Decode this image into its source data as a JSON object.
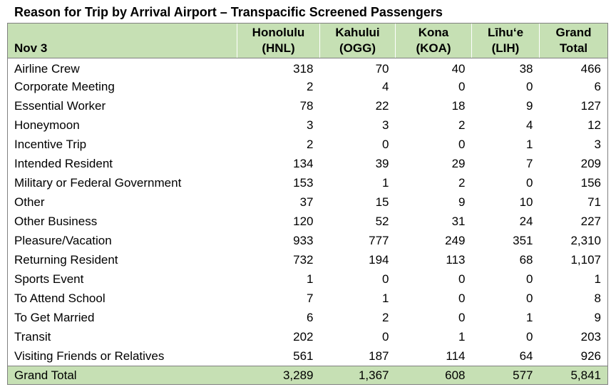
{
  "title": "Reason for Trip by Arrival Airport – Transpacific Screened Passengers",
  "colors": {
    "header_fill": "#c6e0b4",
    "border": "#808080"
  },
  "table": {
    "corner_label": "Nov 3",
    "columns": [
      {
        "line1": "Honolulu",
        "line2": "(HNL)"
      },
      {
        "line1": "Kahului",
        "line2": "(OGG)"
      },
      {
        "line1": "Kona",
        "line2": "(KOA)"
      },
      {
        "line1": "Līhu‘e",
        "line2": "(LIH)"
      },
      {
        "line1": "Grand",
        "line2": "Total"
      }
    ],
    "rows": [
      {
        "label": "Airline Crew",
        "values": [
          "318",
          "70",
          "40",
          "38",
          "466"
        ]
      },
      {
        "label": "Corporate Meeting",
        "values": [
          "2",
          "4",
          "0",
          "0",
          "6"
        ]
      },
      {
        "label": "Essential Worker",
        "values": [
          "78",
          "22",
          "18",
          "9",
          "127"
        ]
      },
      {
        "label": "Honeymoon",
        "values": [
          "3",
          "3",
          "2",
          "4",
          "12"
        ]
      },
      {
        "label": "Incentive Trip",
        "values": [
          "2",
          "0",
          "0",
          "1",
          "3"
        ]
      },
      {
        "label": "Intended Resident",
        "values": [
          "134",
          "39",
          "29",
          "7",
          "209"
        ]
      },
      {
        "label": "Military or Federal Government",
        "values": [
          "153",
          "1",
          "2",
          "0",
          "156"
        ]
      },
      {
        "label": "Other",
        "values": [
          "37",
          "15",
          "9",
          "10",
          "71"
        ]
      },
      {
        "label": "Other Business",
        "values": [
          "120",
          "52",
          "31",
          "24",
          "227"
        ]
      },
      {
        "label": "Pleasure/Vacation",
        "values": [
          "933",
          "777",
          "249",
          "351",
          "2,310"
        ]
      },
      {
        "label": "Returning Resident",
        "values": [
          "732",
          "194",
          "113",
          "68",
          "1,107"
        ]
      },
      {
        "label": "Sports Event",
        "values": [
          "1",
          "0",
          "0",
          "0",
          "1"
        ]
      },
      {
        "label": "To Attend School",
        "values": [
          "7",
          "1",
          "0",
          "0",
          "8"
        ]
      },
      {
        "label": "To Get Married",
        "values": [
          "6",
          "2",
          "0",
          "1",
          "9"
        ]
      },
      {
        "label": "Transit",
        "values": [
          "202",
          "0",
          "1",
          "0",
          "203"
        ]
      },
      {
        "label": "Visiting Friends or Relatives",
        "values": [
          "561",
          "187",
          "114",
          "64",
          "926"
        ]
      }
    ],
    "total": {
      "label": "Grand Total",
      "values": [
        "3,289",
        "1,367",
        "608",
        "577",
        "5,841"
      ]
    }
  }
}
